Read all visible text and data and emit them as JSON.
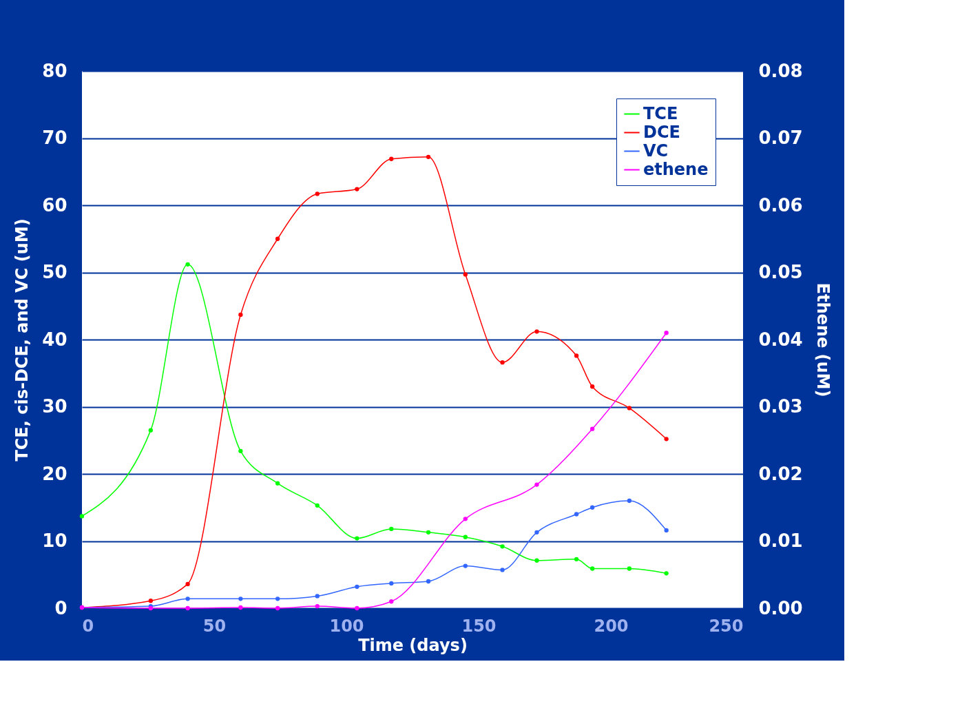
{
  "chart_data": {
    "type": "line",
    "xlabel": "Time (days)",
    "ylabel": "TCE, cis-DCE, and VC (uM)",
    "y2label": "Ethene (uM)",
    "x": [
      0,
      26,
      40,
      60,
      74,
      89,
      104,
      117,
      131,
      145,
      159,
      172,
      187,
      193,
      207,
      221
    ],
    "series": [
      {
        "name": "TCE",
        "color": "#00ff00",
        "values": [
          13.7,
          26.5,
          51.2,
          23.4,
          18.6,
          15.3,
          10.4,
          11.8,
          11.3,
          10.6,
          9.2,
          7.1,
          7.3,
          5.9,
          5.9,
          5.2
        ]
      },
      {
        "name": "DCE",
        "color": "#ff0000",
        "values": [
          0.1,
          1.1,
          3.6,
          43.7,
          55.0,
          61.7,
          62.4,
          66.9,
          67.2,
          49.7,
          36.6,
          41.2,
          37.6,
          33.0,
          29.8,
          25.2
        ]
      },
      {
        "name": "VC",
        "color": "#3366ff",
        "values": [
          0.1,
          0.3,
          1.4,
          1.4,
          1.4,
          1.8,
          3.2,
          3.7,
          4.0,
          6.3,
          5.7,
          11.3,
          14.0,
          15.0,
          16.0,
          11.6
        ]
      },
      {
        "name": "ethene",
        "color": "#ff00ff",
        "axis": "y2",
        "x": [
          0,
          26,
          40,
          60,
          74,
          89,
          104,
          117,
          145,
          172,
          193,
          221
        ],
        "values": [
          0.0001,
          0.0,
          0.0,
          0.0001,
          0.0,
          0.0003,
          0.0,
          0.001,
          0.0133,
          0.0184,
          0.0267,
          0.041
        ]
      }
    ],
    "xlim": [
      0,
      250
    ],
    "xticks": [
      0,
      50,
      100,
      150,
      200,
      250
    ],
    "ylim": [
      0,
      80
    ],
    "yticks": [
      0,
      10,
      20,
      30,
      40,
      50,
      60,
      70,
      80
    ],
    "y2lim": [
      0,
      0.08
    ],
    "y2ticks": [
      {
        "value": 0,
        "label": "0.00"
      },
      {
        "value": 0.01,
        "label": "0.01"
      },
      {
        "value": 0.02,
        "label": "0.02"
      },
      {
        "value": 0.03,
        "label": "0.03"
      },
      {
        "value": 0.04,
        "label": "0.04"
      },
      {
        "value": 0.05,
        "label": "0.05"
      },
      {
        "value": 0.06,
        "label": "0.06"
      },
      {
        "value": 0.07,
        "label": "0.07"
      },
      {
        "value": 0.08,
        "label": "0.08"
      }
    ],
    "grid": "y",
    "legend": "top right",
    "marker": "circle",
    "line_style": "solid"
  }
}
